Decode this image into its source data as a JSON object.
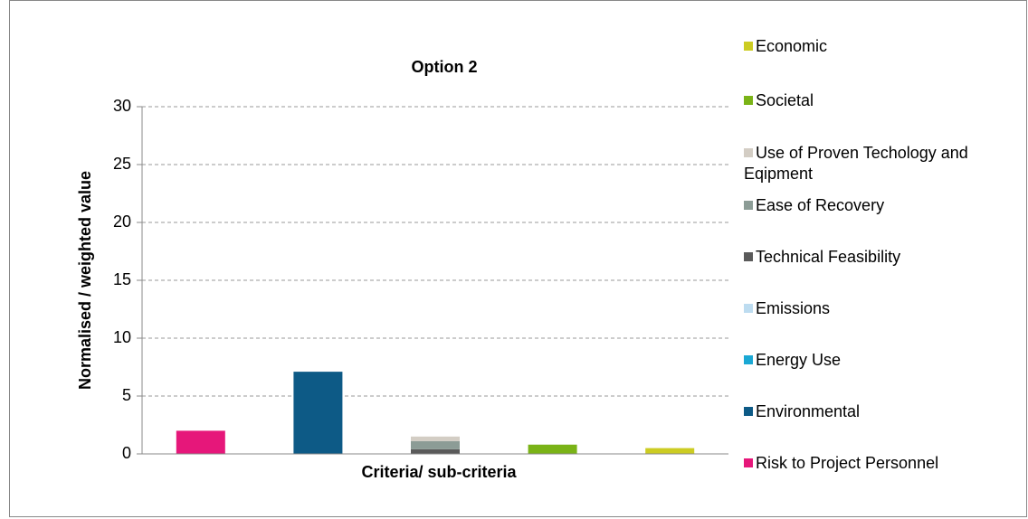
{
  "chart_data": {
    "type": "stacked_bar",
    "title": "Option 2",
    "x_label": "Criteria/ sub-criteria",
    "y_label": "Normalised / weighted value",
    "categories": [
      null,
      null,
      null,
      null,
      null
    ],
    "series": [
      {
        "name": "Risk to Project Personnel",
        "color": "#e6177a",
        "values": [
          2.0,
          null,
          null,
          null,
          null
        ]
      },
      {
        "name": "Environmental",
        "color": "#0d5a86",
        "values": [
          null,
          7.1,
          null,
          null,
          null
        ]
      },
      {
        "name": "Energy Use",
        "color": "#1aa8d4",
        "values": [
          null,
          null,
          null,
          null,
          null
        ]
      },
      {
        "name": "Emissions",
        "color": "#bddcf0",
        "values": [
          null,
          null,
          null,
          null,
          null
        ]
      },
      {
        "name": "Technical Feasibility",
        "color": "#5a5a5a",
        "values": [
          null,
          null,
          0.4,
          null,
          null
        ]
      },
      {
        "name": "Ease of Recovery",
        "color": "#8c9c96",
        "values": [
          null,
          null,
          0.7,
          null,
          null
        ]
      },
      {
        "name": "Use of Proven Techology and Eqipment",
        "color": "#d3cdc4",
        "values": [
          null,
          null,
          0.4,
          null,
          null
        ]
      },
      {
        "name": "Societal",
        "color": "#7ab317",
        "values": [
          null,
          null,
          null,
          0.8,
          null
        ]
      },
      {
        "name": "Economic",
        "color": "#cccc22",
        "values": [
          null,
          null,
          null,
          null,
          0.5
        ]
      }
    ],
    "ylim": [
      0,
      30
    ],
    "yticks": [
      0,
      5,
      10,
      15,
      20,
      25,
      30
    ],
    "grid": true,
    "legend": "right"
  }
}
